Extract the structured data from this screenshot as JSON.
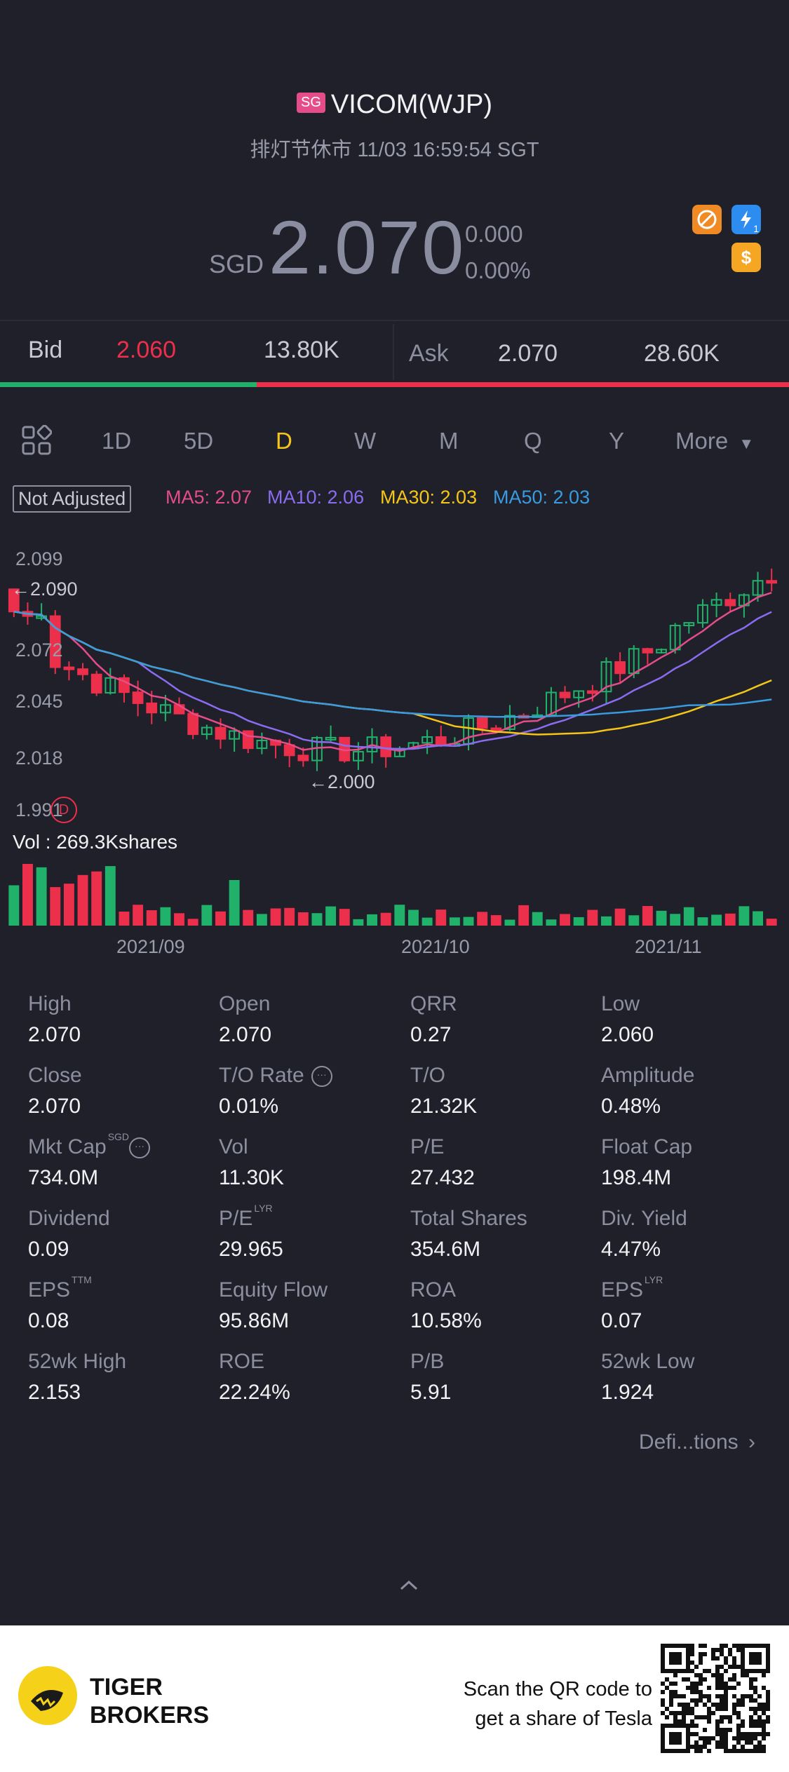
{
  "header": {
    "badge": "SG",
    "title": "VICOM(WJP)",
    "status": "排灯节休市 11/03 16:59:54 SGT"
  },
  "quote": {
    "currency": "SGD",
    "price": "2.070",
    "change": "0.000",
    "change_pct": "0.00%",
    "icons": [
      "no-short-icon",
      "lightning-icon",
      "dollar-icon"
    ],
    "lightning_index": "1"
  },
  "orderbook": {
    "bid_label": "Bid",
    "bid_price": "2.060",
    "bid_size": "13.80K",
    "ask_label": "Ask",
    "ask_price": "2.070",
    "ask_size": "28.60K",
    "bid_ratio": 0.325
  },
  "tabs": {
    "items": [
      "1D",
      "5D",
      "D",
      "W",
      "M",
      "Q",
      "Y",
      "More"
    ],
    "active": "D"
  },
  "indicators": {
    "not_adjusted": "Not Adjusted",
    "ma5": "MA5: 2.07",
    "ma10": "MA10: 2.06",
    "ma30": "MA30: 2.03",
    "ma50": "MA50: 2.03"
  },
  "chart_data": {
    "type": "candlestick",
    "y_ticks": [
      "2.099",
      "2.072",
      "2.045",
      "2.018",
      "1.991"
    ],
    "max_marker": "←2.090",
    "min_marker": "←2.000",
    "x_ticks": [
      "2021/09",
      "2021/10",
      "2021/11"
    ],
    "volume_label": "Vol  : 269.3Kshares",
    "colors": {
      "up": "#20b26b",
      "down": "#ec2f4b",
      "ma5": "#e54d8a",
      "ma10": "#8b6cf0",
      "ma30": "#f5c518",
      "ma50": "#3a9be0"
    }
  },
  "stats": [
    {
      "label": "High",
      "value": "2.070"
    },
    {
      "label": "Open",
      "value": "2.070"
    },
    {
      "label": "QRR",
      "value": "0.27"
    },
    {
      "label": "Low",
      "value": "2.060"
    },
    {
      "label": "Close",
      "value": "2.070"
    },
    {
      "label": "T/O Rate",
      "value": "0.01%"
    },
    {
      "label": "T/O",
      "value": "21.32K"
    },
    {
      "label": "Amplitude",
      "value": "0.48%"
    },
    {
      "label": "Mkt Cap",
      "value": "734.0M",
      "sup": "SGD"
    },
    {
      "label": "Vol",
      "value": "11.30K"
    },
    {
      "label": "P/E",
      "value": "27.432"
    },
    {
      "label": "Float Cap",
      "value": "198.4M"
    },
    {
      "label": "Dividend",
      "value": "0.09"
    },
    {
      "label": "P/E",
      "value": "29.965",
      "sup": "LYR"
    },
    {
      "label": "Total Shares",
      "value": "354.6M"
    },
    {
      "label": "Div. Yield",
      "value": "4.47%"
    },
    {
      "label": "EPS",
      "value": "0.08",
      "sup": "TTM"
    },
    {
      "label": "Equity Flow",
      "value": "95.86M"
    },
    {
      "label": "ROA",
      "value": "10.58%"
    },
    {
      "label": "EPS",
      "value": "0.07",
      "sup": "LYR"
    },
    {
      "label": "52wk High",
      "value": "2.153"
    },
    {
      "label": "ROE",
      "value": "22.24%"
    },
    {
      "label": "P/B",
      "value": "5.91"
    },
    {
      "label": "52wk Low",
      "value": "1.924"
    }
  ],
  "definitions_link": "Defi...tions",
  "footer": {
    "brand_line1": "TIGER",
    "brand_line2": "BROKERS",
    "promo_line1": "Scan the QR code to",
    "promo_line2": "get a share of Tesla"
  }
}
